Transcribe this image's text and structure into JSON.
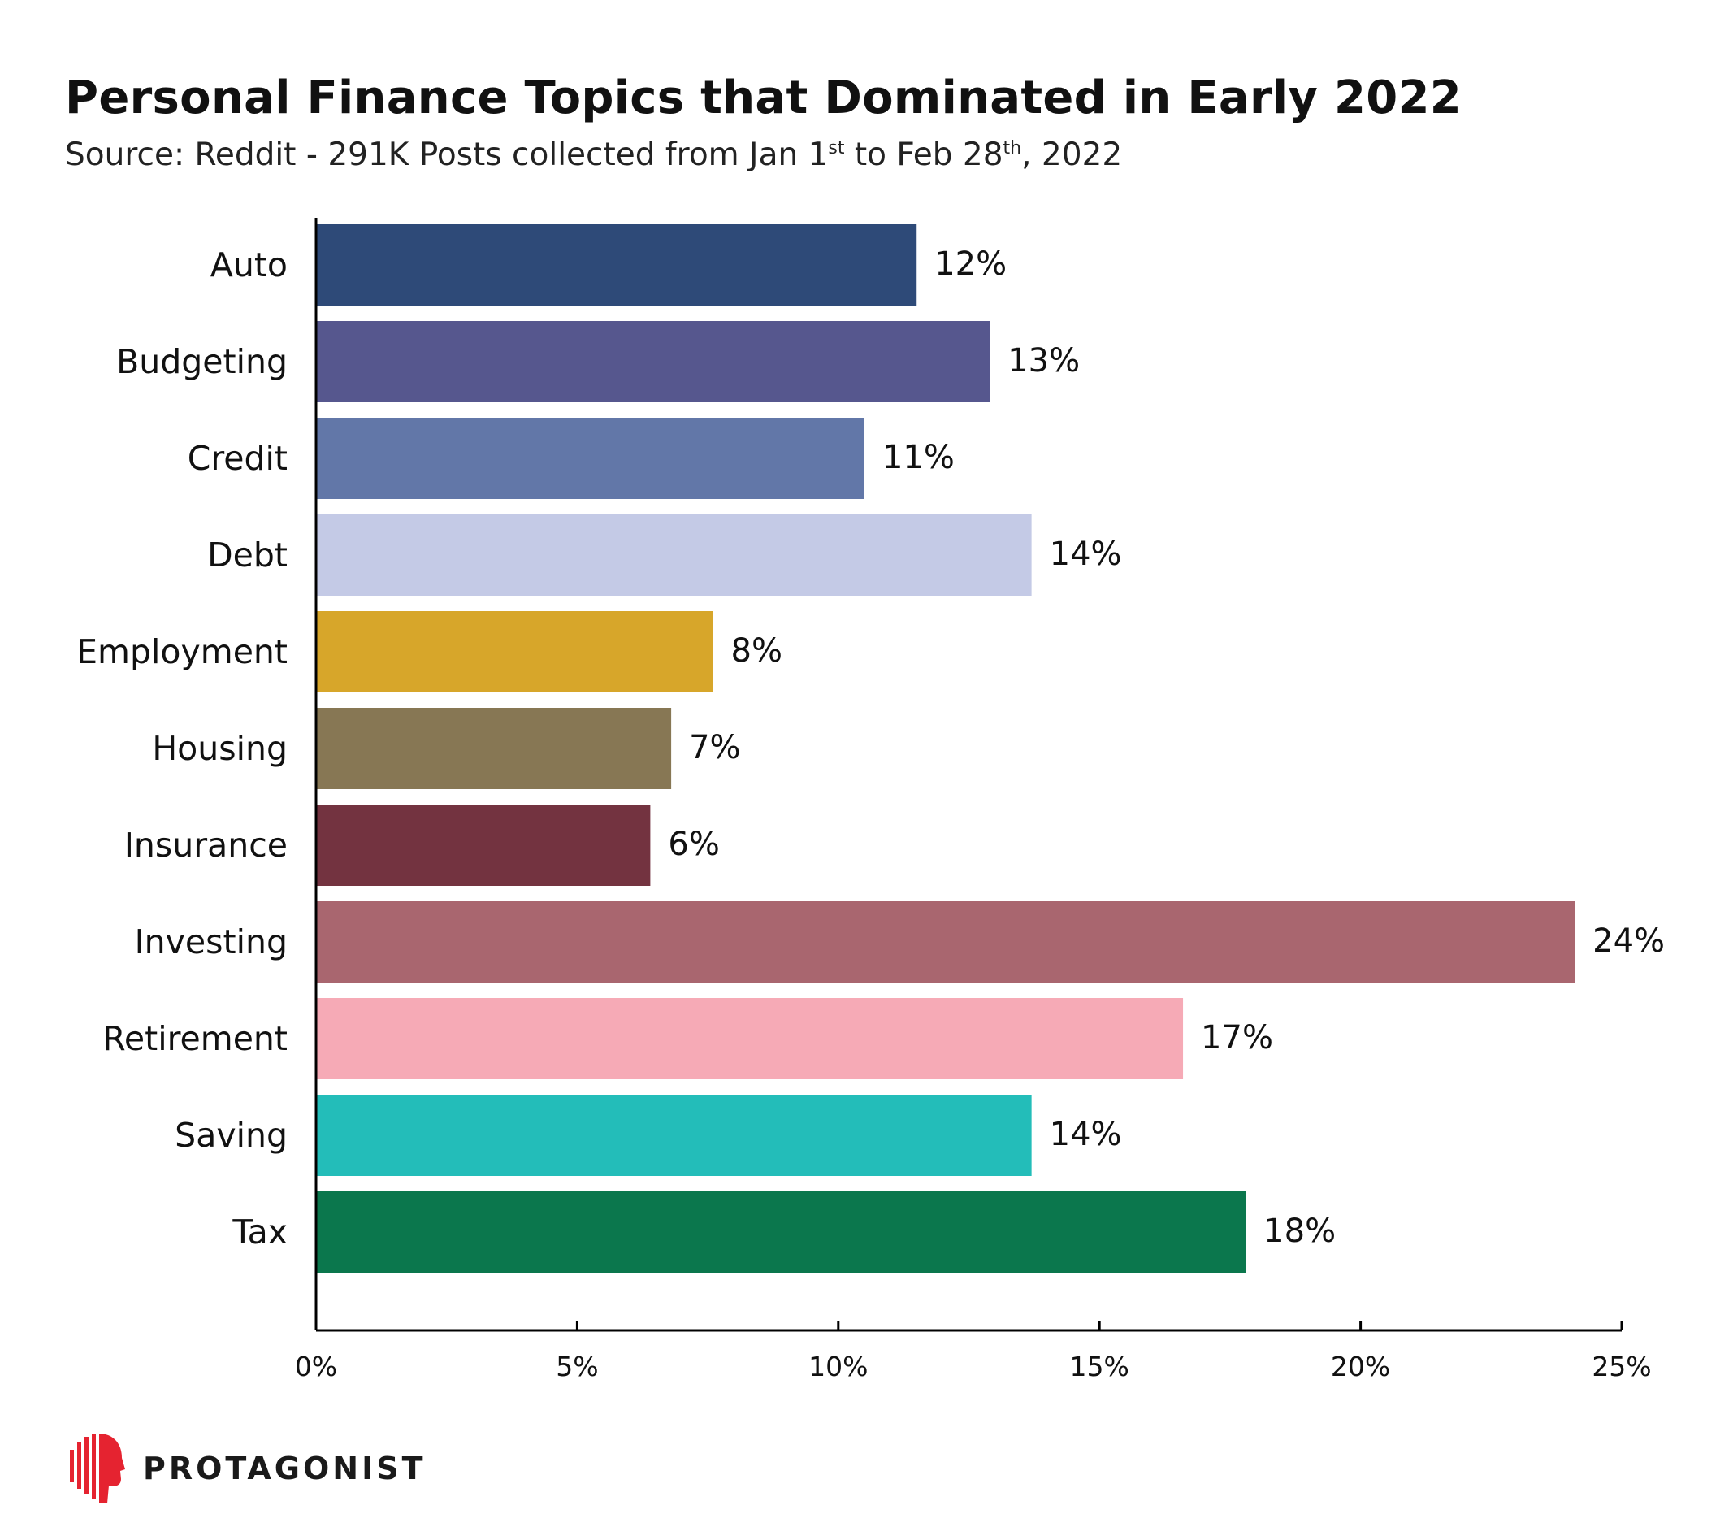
{
  "header": {
    "title": "Personal Finance Topics that Dominated in Early 2022",
    "subtitle_part1": "Source: Reddit - 291K Posts collected from Jan 1",
    "subtitle_sup1": "st",
    "subtitle_part2": " to Feb 28",
    "subtitle_sup2": "th",
    "subtitle_part3": ", 2022"
  },
  "chart_data": {
    "type": "bar",
    "orientation": "horizontal",
    "title": "Personal Finance Topics that Dominated in Early 2022",
    "categories": [
      "Auto",
      "Budgeting",
      "Credit",
      "Debt",
      "Employment",
      "Housing",
      "Insurance",
      "Investing",
      "Retirement",
      "Saving",
      "Tax"
    ],
    "values": [
      11.5,
      12.9,
      10.5,
      13.7,
      7.6,
      6.8,
      6.4,
      24.1,
      16.6,
      13.7,
      17.8
    ],
    "data_labels": [
      "12%",
      "13%",
      "11%",
      "14%",
      "8%",
      "7%",
      "6%",
      "24%",
      "17%",
      "14%",
      "18%"
    ],
    "colors": [
      "#2e4a78",
      "#56578e",
      "#6277a8",
      "#c4cae6",
      "#d7a62a",
      "#877754",
      "#733340",
      "#a9666f",
      "#f6aab6",
      "#23bdb9",
      "#0b774d"
    ],
    "xlim": [
      0,
      25
    ],
    "x_ticks": [
      0,
      5,
      10,
      15,
      20,
      25
    ],
    "x_tick_labels": [
      "0%",
      "5%",
      "10%",
      "15%",
      "20%",
      "25%"
    ],
    "xlabel": "",
    "ylabel": "",
    "grid": false,
    "legend": "none"
  },
  "brand": {
    "name": "PROTAGONIST",
    "icon": "protagonist-head-logo-icon",
    "color": "#e52330"
  }
}
